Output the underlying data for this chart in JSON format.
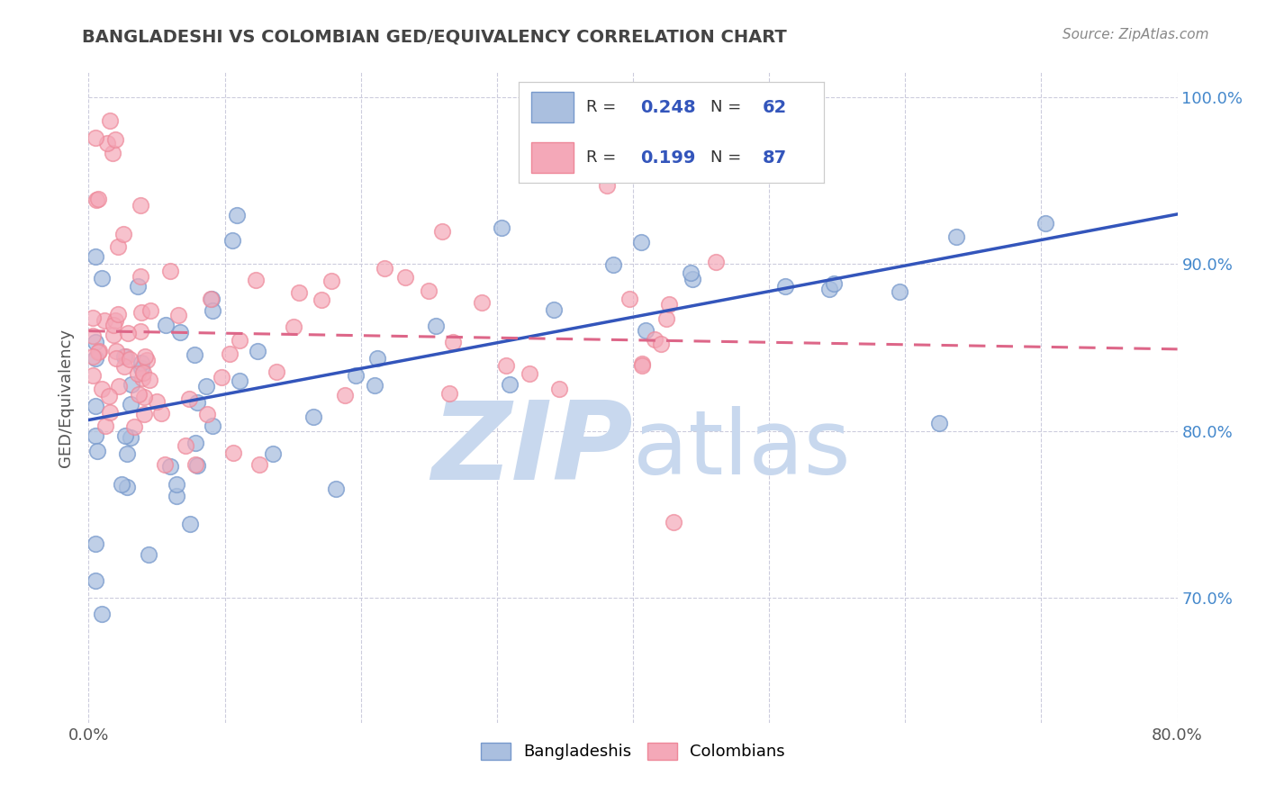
{
  "title": "BANGLADESHI VS COLOMBIAN GED/EQUIVALENCY CORRELATION CHART",
  "source_text": "Source: ZipAtlas.com",
  "ylabel": "GED/Equivalency",
  "xmin": 0.0,
  "xmax": 0.8,
  "ymin": 0.625,
  "ymax": 1.015,
  "ytick_labels": [
    "70.0%",
    "80.0%",
    "90.0%",
    "100.0%"
  ],
  "ytick_values": [
    0.7,
    0.8,
    0.9,
    1.0
  ],
  "legend_blue_r": "0.248",
  "legend_blue_n": "62",
  "legend_pink_r": "0.199",
  "legend_pink_n": "87",
  "blue_fill": "#AABFDF",
  "blue_edge": "#7799CC",
  "pink_fill": "#F4A8B8",
  "pink_edge": "#EE8899",
  "blue_line_color": "#3355BB",
  "pink_line_color": "#DD6688",
  "watermark_color": "#C8D8EE",
  "title_color": "#444444",
  "source_color": "#888888",
  "ylabel_color": "#555555",
  "grid_color": "#CCCCDD",
  "ytick_color": "#4488CC",
  "xtick_color": "#555555"
}
